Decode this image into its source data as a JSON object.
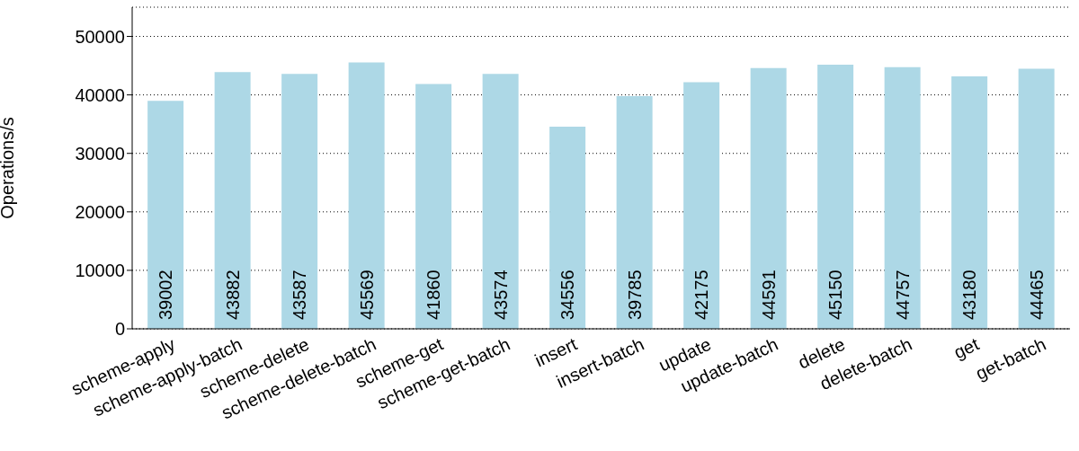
{
  "chart_data": {
    "type": "bar",
    "ylabel": "Operations/s",
    "categories": [
      "scheme-apply",
      "scheme-apply-batch",
      "scheme-delete",
      "scheme-delete-batch",
      "scheme-get",
      "scheme-get-batch",
      "insert",
      "insert-batch",
      "update",
      "update-batch",
      "delete",
      "delete-batch",
      "get",
      "get-batch"
    ],
    "values": [
      39002,
      43882,
      43587,
      45569,
      41860,
      43574,
      34556,
      39785,
      42175,
      44591,
      45150,
      44757,
      43180,
      44465
    ],
    "color": "#add8e6",
    "ylim": [
      0,
      55000
    ],
    "yticks": [
      0,
      10000,
      20000,
      30000,
      40000,
      50000
    ],
    "grid": "y",
    "data_labels": true
  }
}
